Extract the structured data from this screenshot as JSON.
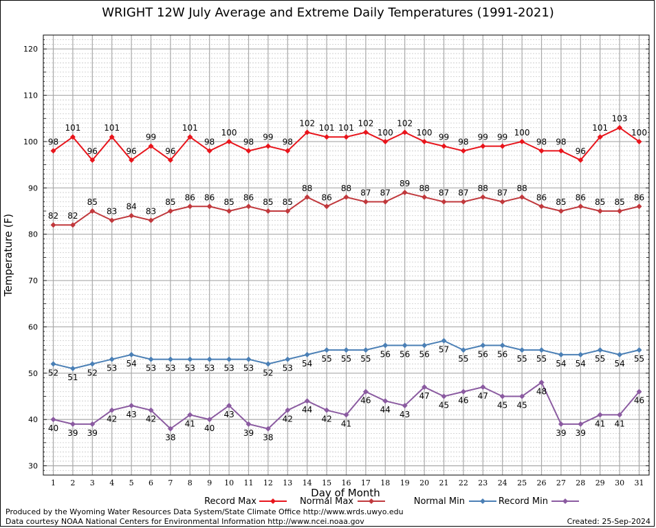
{
  "chart_data": {
    "type": "line",
    "title": "WRIGHT 12W July Average and Extreme Daily Temperatures (1991-2021)",
    "xlabel": "Day of Month",
    "ylabel": "Temperature (F)",
    "ylim": [
      28,
      123
    ],
    "yticks": [
      30,
      40,
      50,
      60,
      70,
      80,
      90,
      100,
      110,
      120
    ],
    "x": [
      1,
      2,
      3,
      4,
      5,
      6,
      7,
      8,
      9,
      10,
      11,
      12,
      13,
      14,
      15,
      16,
      17,
      18,
      19,
      20,
      21,
      22,
      23,
      24,
      25,
      26,
      27,
      28,
      29,
      30,
      31
    ],
    "grid": true,
    "legend_position": "bottom",
    "series": [
      {
        "name": "Record Max",
        "color": "#e8141b",
        "label_pos": "above",
        "values": [
          98,
          101,
          96,
          101,
          96,
          99,
          96,
          101,
          98,
          100,
          98,
          99,
          98,
          102,
          101,
          101,
          102,
          100,
          102,
          100,
          99,
          98,
          99,
          99,
          100,
          98,
          98,
          96,
          101,
          103,
          100
        ]
      },
      {
        "name": "Normal Max",
        "color": "#c0383c",
        "label_pos": "above",
        "values": [
          82,
          82,
          85,
          83,
          84,
          83,
          85,
          86,
          86,
          85,
          86,
          85,
          85,
          88,
          86,
          88,
          87,
          87,
          89,
          88,
          87,
          87,
          88,
          87,
          88,
          86,
          85,
          86,
          85,
          85,
          86
        ]
      },
      {
        "name": "Normal Min",
        "color": "#4a7fb5",
        "label_pos": "below",
        "values": [
          52,
          51,
          52,
          53,
          54,
          53,
          53,
          53,
          53,
          53,
          53,
          52,
          53,
          54,
          55,
          55,
          55,
          56,
          56,
          56,
          57,
          55,
          56,
          56,
          55,
          55,
          54,
          54,
          55,
          54,
          55
        ]
      },
      {
        "name": "Record Min",
        "color": "#8a5aa0",
        "label_pos": "below",
        "values": [
          40,
          39,
          39,
          42,
          43,
          42,
          38,
          41,
          40,
          43,
          39,
          38,
          42,
          44,
          42,
          41,
          46,
          44,
          43,
          47,
          45,
          46,
          47,
          45,
          45,
          48,
          39,
          39,
          41,
          41,
          46
        ]
      }
    ]
  },
  "footer": {
    "line1": "Produced by the Wyoming Water Resources Data System/State Climate Office http://www.wrds.uwyo.edu",
    "line2": "Data courtesy NOAA National Centers for Environmental Information http://www.ncei.noaa.gov",
    "created": "Created:  25-Sep-2024"
  }
}
